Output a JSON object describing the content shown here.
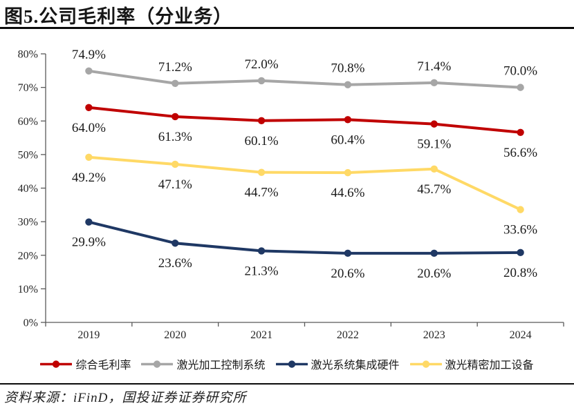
{
  "title": "图5.公司毛利率（分业务）",
  "source": "资料来源：iFinD，国投证券证券研究所",
  "chart_data": {
    "type": "line",
    "title": "公司毛利率（分业务）",
    "xlabel": "",
    "ylabel": "",
    "categories": [
      "2019",
      "2020",
      "2021",
      "2022",
      "2023",
      "2024"
    ],
    "series": [
      {
        "name": "综合毛利率",
        "color": "#c00000",
        "label_position": "below",
        "values": [
          64.0,
          61.3,
          60.1,
          60.4,
          59.1,
          56.6
        ]
      },
      {
        "name": "激光加工控制系统",
        "color": "#a6a6a6",
        "label_position": "above",
        "values": [
          74.9,
          71.2,
          72.0,
          70.8,
          71.4,
          70.0
        ]
      },
      {
        "name": "激光系统集成硬件",
        "color": "#1f3864",
        "label_position": "below",
        "values": [
          29.9,
          23.6,
          21.3,
          20.6,
          20.6,
          20.8
        ]
      },
      {
        "name": "激光精密加工设备",
        "color": "#ffd966",
        "label_position": "below",
        "values": [
          49.2,
          47.1,
          44.7,
          44.6,
          45.7,
          33.6
        ]
      }
    ],
    "ylim": [
      0,
      80
    ],
    "ytick_step": 10,
    "ytick_labels": [
      "0%",
      "10%",
      "20%",
      "30%",
      "40%",
      "50%",
      "60%",
      "70%",
      "80%"
    ],
    "value_suffix": "%",
    "grid": false,
    "legend_position": "bottom",
    "axis_color": "#595959"
  }
}
